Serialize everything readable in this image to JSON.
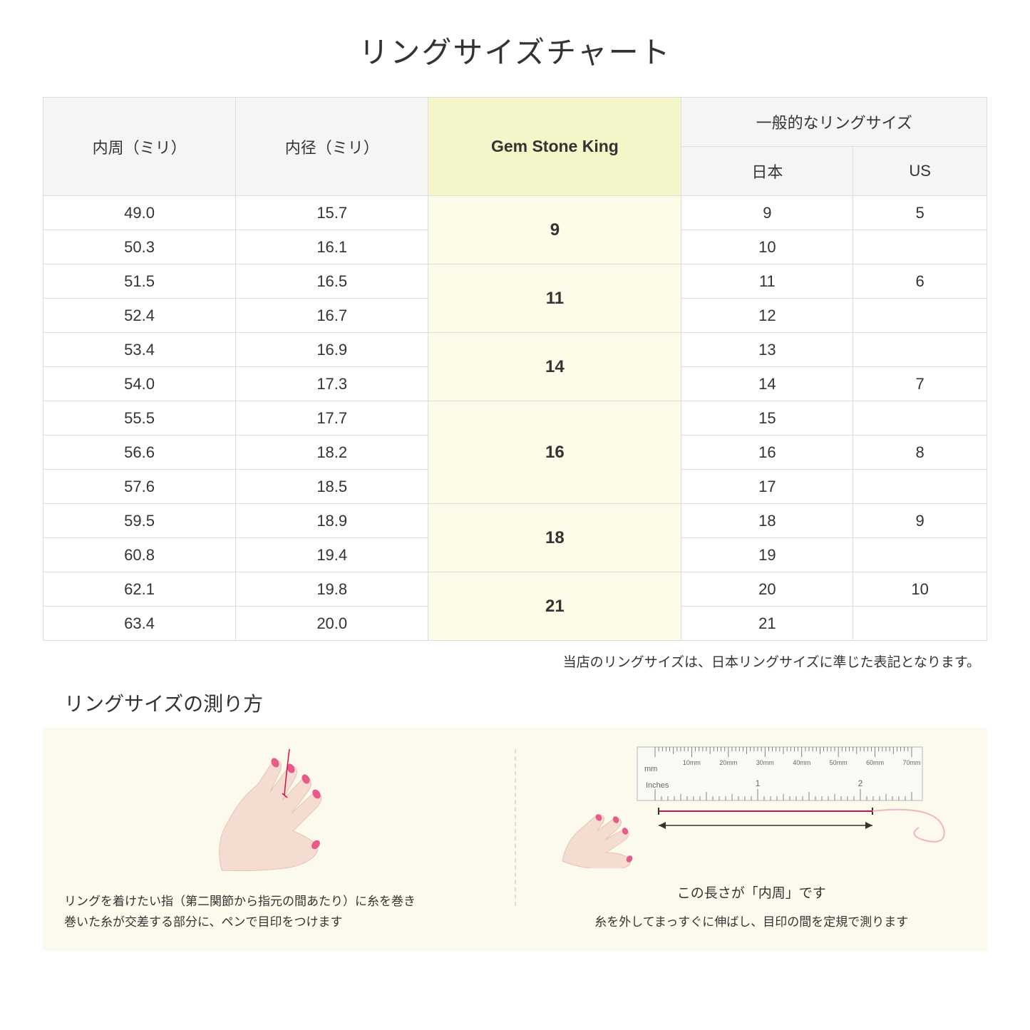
{
  "title": "リングサイズチャート",
  "table": {
    "headers": {
      "circumference": "内周（ミリ）",
      "diameter": "内径（ミリ）",
      "gsk": "Gem Stone King",
      "general_parent": "一般的なリングサイズ",
      "japan": "日本",
      "us": "US"
    },
    "groups": [
      {
        "gsk": "9",
        "rows": [
          {
            "circ": "49.0",
            "diam": "15.7",
            "jp": "9",
            "us": "5"
          },
          {
            "circ": "50.3",
            "diam": "16.1",
            "jp": "10",
            "us": ""
          }
        ]
      },
      {
        "gsk": "11",
        "rows": [
          {
            "circ": "51.5",
            "diam": "16.5",
            "jp": "11",
            "us": "6"
          },
          {
            "circ": "52.4",
            "diam": "16.7",
            "jp": "12",
            "us": ""
          }
        ]
      },
      {
        "gsk": "14",
        "rows": [
          {
            "circ": "53.4",
            "diam": "16.9",
            "jp": "13",
            "us": ""
          },
          {
            "circ": "54.0",
            "diam": "17.3",
            "jp": "14",
            "us": "7"
          }
        ]
      },
      {
        "gsk": "16",
        "rows": [
          {
            "circ": "55.5",
            "diam": "17.7",
            "jp": "15",
            "us": ""
          },
          {
            "circ": "56.6",
            "diam": "18.2",
            "jp": "16",
            "us": "8"
          },
          {
            "circ": "57.6",
            "diam": "18.5",
            "jp": "17",
            "us": ""
          }
        ]
      },
      {
        "gsk": "18",
        "rows": [
          {
            "circ": "59.5",
            "diam": "18.9",
            "jp": "18",
            "us": "9"
          },
          {
            "circ": "60.8",
            "diam": "19.4",
            "jp": "19",
            "us": ""
          }
        ]
      },
      {
        "gsk": "21",
        "rows": [
          {
            "circ": "62.1",
            "diam": "19.8",
            "jp": "20",
            "us": "10"
          },
          {
            "circ": "63.4",
            "diam": "20.0",
            "jp": "21",
            "us": ""
          }
        ]
      }
    ]
  },
  "note": "当店のリングサイズは、日本リングサイズに準じた表記となります。",
  "howto": {
    "title": "リングサイズの測り方",
    "left_caption_line1": "リングを着けたい指（第二関節から指元の間あたり）に糸を巻き",
    "left_caption_line2": "巻いた糸が交差する部分に、ペンで目印をつけます",
    "length_label": "この長さが「内周」です",
    "right_caption": "糸を外してまっすぐに伸ばし、目印の間を定規で測ります",
    "ruler": {
      "mm_label": "mm",
      "inches_label": "Inches",
      "mm_ticks": [
        "10mm",
        "20mm",
        "30mm",
        "40mm",
        "50mm",
        "60mm",
        "70mm"
      ],
      "inch_labels": [
        "1",
        "2"
      ]
    }
  },
  "colors": {
    "header_bg": "#f5f5f5",
    "highlight_bg": "#f4f5c8",
    "gsk_cell_bg": "#fcfce8",
    "howto_bg": "#fcfaed",
    "border": "#dddddd",
    "hand_fill": "#f5dcd0",
    "nail": "#e85a8a",
    "thread": "#d01050",
    "ruler_bg": "#fafaf5",
    "ruler_border": "#cccccc"
  }
}
